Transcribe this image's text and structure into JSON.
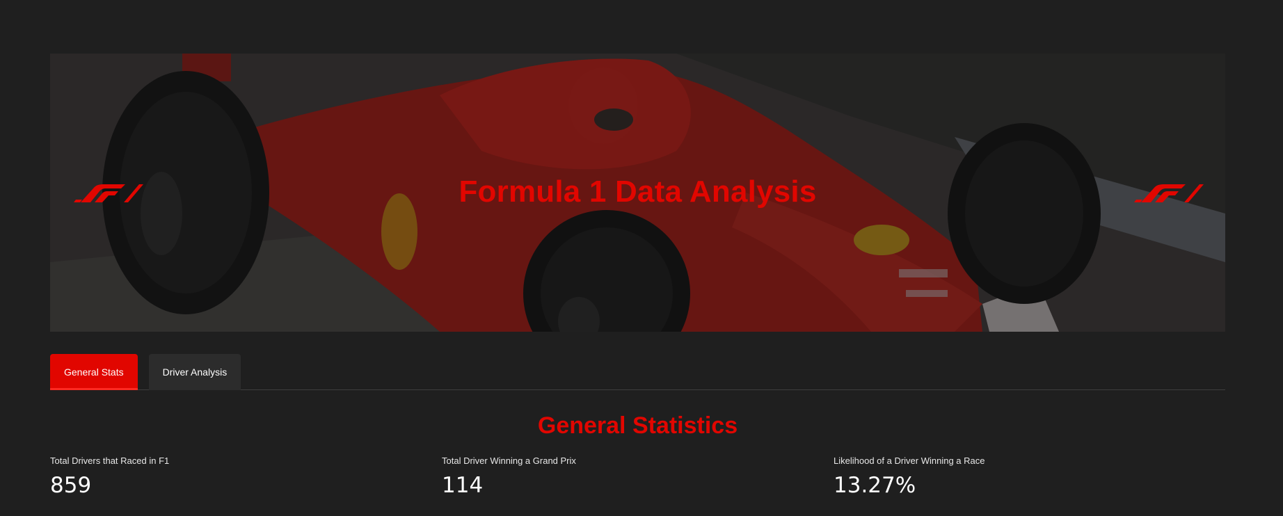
{
  "hero": {
    "title": "Formula 1 Data Analysis",
    "logo_icon": "f1-logo-icon",
    "accent_color": "#e10600"
  },
  "tabs": [
    {
      "label": "General Stats",
      "active": true
    },
    {
      "label": "Driver Analysis",
      "active": false
    }
  ],
  "section": {
    "title": "General Statistics"
  },
  "metrics": [
    {
      "label": "Total Drivers that Raced in F1",
      "value": "859"
    },
    {
      "label": "Total Driver Winning a Grand Prix",
      "value": "114"
    },
    {
      "label": "Likelihood of a Driver Winning a Race",
      "value": "13.27%"
    }
  ]
}
